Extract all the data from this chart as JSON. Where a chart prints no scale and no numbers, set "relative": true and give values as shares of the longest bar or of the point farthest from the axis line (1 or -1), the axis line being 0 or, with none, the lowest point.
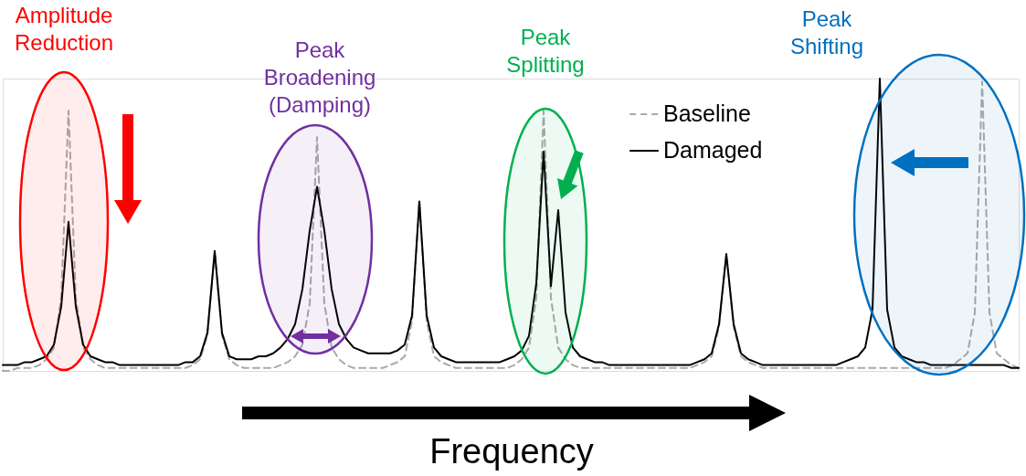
{
  "chart_data": {
    "type": "line",
    "relative": true,
    "xlabel": "Frequency",
    "categories": [
      null,
      null,
      null,
      null,
      null,
      null,
      null,
      null,
      null,
      null,
      null,
      null,
      null,
      null,
      null,
      null,
      null,
      null,
      null,
      null,
      null,
      null,
      null,
      null,
      null,
      null,
      null,
      null,
      null,
      null,
      null,
      null,
      null,
      null,
      null,
      null,
      null,
      null,
      null,
      null,
      null,
      null,
      null,
      null,
      null,
      null,
      null,
      null,
      null,
      null,
      null,
      null,
      null,
      null,
      null,
      null,
      null,
      null,
      null,
      null,
      null,
      null,
      null,
      null,
      null,
      null,
      null,
      null,
      null,
      null,
      null,
      null,
      null,
      null,
      null,
      null,
      null,
      null,
      null,
      null,
      null,
      null,
      null,
      null,
      null,
      null,
      null,
      null,
      null,
      null,
      null,
      null,
      null,
      null,
      null,
      null,
      null,
      null,
      null,
      null,
      null,
      null,
      null,
      null,
      null,
      null,
      null,
      null,
      null,
      null,
      null,
      null,
      null,
      null,
      null,
      null,
      null,
      null,
      null,
      null,
      null,
      null,
      null,
      null,
      null,
      null,
      null,
      null,
      null,
      null,
      null,
      null,
      null,
      null,
      null,
      null,
      null,
      null,
      null,
      null
    ],
    "series": [
      {
        "name": "Baseline",
        "color": "#aaaaaa",
        "line_style": "dashed",
        "values": [
          0.0,
          0.0,
          0.01,
          0.01,
          0.01,
          0.02,
          0.04,
          0.08,
          0.25,
          0.89,
          0.25,
          0.08,
          0.04,
          0.02,
          0.01,
          0.01,
          0.01,
          0.01,
          0.01,
          0.01,
          0.01,
          0.01,
          0.01,
          0.01,
          0.01,
          0.01,
          0.02,
          0.04,
          0.12,
          0.41,
          0.12,
          0.04,
          0.02,
          0.01,
          0.01,
          0.01,
          0.01,
          0.01,
          0.02,
          0.03,
          0.05,
          0.09,
          0.23,
          0.8,
          0.23,
          0.08,
          0.04,
          0.02,
          0.01,
          0.01,
          0.01,
          0.01,
          0.01,
          0.02,
          0.03,
          0.05,
          0.17,
          0.58,
          0.17,
          0.05,
          0.03,
          0.02,
          0.01,
          0.01,
          0.01,
          0.01,
          0.01,
          0.01,
          0.01,
          0.01,
          0.02,
          0.04,
          0.08,
          0.25,
          0.89,
          0.25,
          0.08,
          0.04,
          0.02,
          0.01,
          0.01,
          0.01,
          0.01,
          0.01,
          0.01,
          0.01,
          0.01,
          0.01,
          0.01,
          0.01,
          0.01,
          0.01,
          0.01,
          0.01,
          0.01,
          0.02,
          0.03,
          0.05,
          0.15,
          0.4,
          0.15,
          0.05,
          0.03,
          0.02,
          0.01,
          0.01,
          0.01,
          0.01,
          0.01,
          0.01,
          0.01,
          0.01,
          0.01,
          0.01,
          0.01,
          0.01,
          0.01,
          0.01,
          0.01,
          0.01,
          0.01,
          0.01,
          0.01,
          0.01,
          0.01,
          0.01,
          0.01,
          0.01,
          0.01,
          0.01,
          0.02,
          0.04,
          0.06,
          0.2,
          0.99,
          0.2,
          0.06,
          0.04,
          0.02,
          0.01
        ]
      },
      {
        "name": "Damaged",
        "color": "#000000",
        "line_style": "solid",
        "values": [
          0.02,
          0.02,
          0.02,
          0.03,
          0.03,
          0.04,
          0.05,
          0.09,
          0.22,
          0.51,
          0.22,
          0.09,
          0.05,
          0.04,
          0.03,
          0.03,
          0.02,
          0.02,
          0.02,
          0.02,
          0.02,
          0.02,
          0.02,
          0.02,
          0.02,
          0.03,
          0.03,
          0.05,
          0.13,
          0.41,
          0.13,
          0.05,
          0.04,
          0.04,
          0.04,
          0.05,
          0.05,
          0.06,
          0.08,
          0.11,
          0.16,
          0.28,
          0.48,
          0.63,
          0.48,
          0.28,
          0.16,
          0.11,
          0.08,
          0.07,
          0.06,
          0.06,
          0.06,
          0.06,
          0.07,
          0.09,
          0.19,
          0.58,
          0.19,
          0.08,
          0.05,
          0.04,
          0.03,
          0.03,
          0.03,
          0.03,
          0.03,
          0.03,
          0.03,
          0.04,
          0.05,
          0.07,
          0.12,
          0.3,
          0.75,
          0.29,
          0.55,
          0.2,
          0.08,
          0.05,
          0.04,
          0.03,
          0.03,
          0.02,
          0.02,
          0.02,
          0.02,
          0.02,
          0.02,
          0.02,
          0.02,
          0.02,
          0.02,
          0.02,
          0.02,
          0.03,
          0.04,
          0.06,
          0.16,
          0.4,
          0.16,
          0.06,
          0.04,
          0.03,
          0.02,
          0.02,
          0.02,
          0.02,
          0.02,
          0.02,
          0.02,
          0.02,
          0.02,
          0.02,
          0.02,
          0.03,
          0.04,
          0.05,
          0.08,
          0.21,
          1.0,
          0.21,
          0.08,
          0.05,
          0.04,
          0.03,
          0.03,
          0.02,
          0.02,
          0.02,
          0.02,
          0.02,
          0.02,
          0.02,
          0.02,
          0.02,
          0.02,
          0.02,
          0.01,
          0.01
        ]
      }
    ],
    "legend": "top right",
    "marker": "none",
    "annotations": [
      "Amplitude Reduction",
      "Peak Broadening (Damping)",
      "Peak Splitting",
      "Peak Shifting"
    ]
  }
}
